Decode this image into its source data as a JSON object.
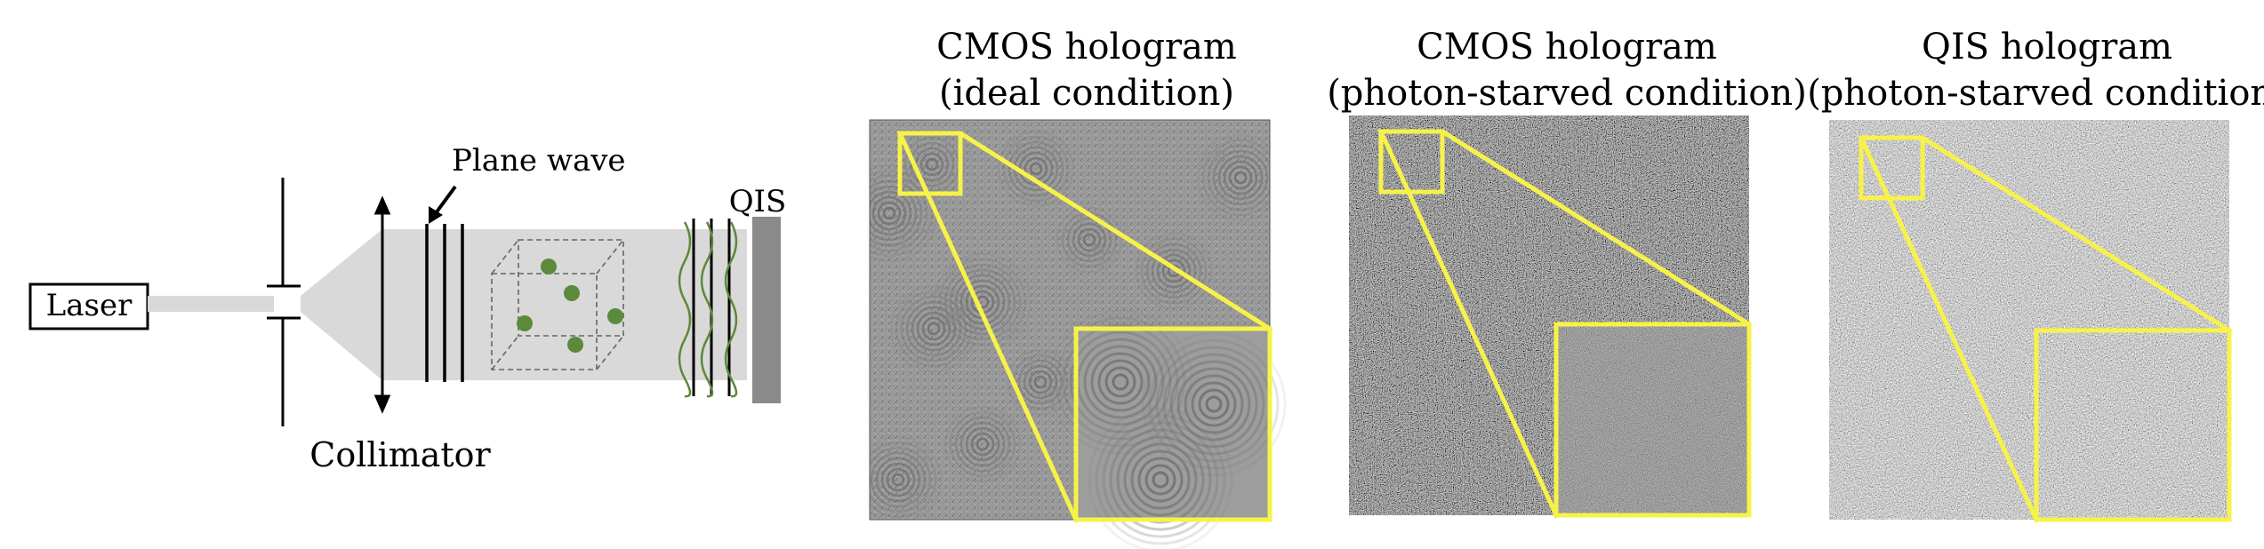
{
  "setup": {
    "laser_label": "Laser",
    "plane_wave_label": "Plane wave",
    "sensor_label": "QIS",
    "collimator_label": "Collimator",
    "colors": {
      "beam": "#d9d9d9",
      "particle": "#5b8a3a",
      "sensor": "#8a8a8a",
      "wavefront": "#5b8a3a"
    }
  },
  "panels": [
    {
      "id": "cmos-ideal",
      "title_line1": "CMOS hologram",
      "title_line2": "(ideal condition)",
      "style": "fringes"
    },
    {
      "id": "cmos-starved",
      "title_line1": "CMOS hologram",
      "title_line2": "(photon-starved condition)",
      "style": "noise-dark"
    },
    {
      "id": "qis-starved",
      "title_line1": "QIS hologram",
      "title_line2": "(photon-starved condition)",
      "style": "noise-light"
    }
  ],
  "zoom_color": "#f7f24a"
}
